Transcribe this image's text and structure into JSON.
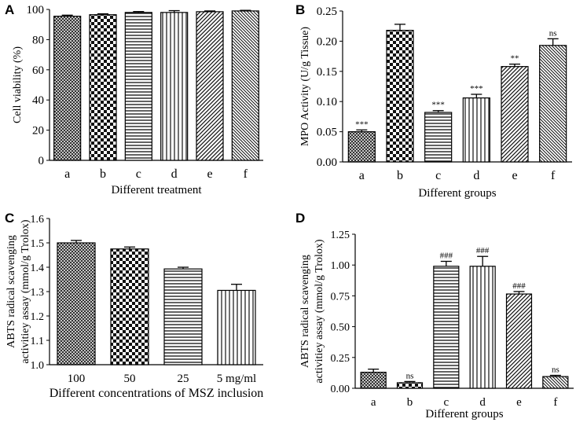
{
  "patterns": {
    "a": "crosshatch",
    "b": "checker",
    "c": "hlines",
    "d": "vlines",
    "e": "diagonal",
    "f": "diagonal-fine"
  },
  "chart_data": [
    {
      "panel": "A",
      "type": "bar",
      "title": "",
      "xlabel": "Different treatment",
      "ylabel": "Cell viability (%)",
      "ylim": [
        0,
        100
      ],
      "yticks": [
        "0",
        "20",
        "40",
        "60",
        "80",
        "100"
      ],
      "categories": [
        "a",
        "b",
        "c",
        "d",
        "e",
        "f"
      ],
      "values": [
        95.5,
        96.5,
        98,
        98,
        98.5,
        99
      ],
      "errors": [
        0.7,
        0.6,
        0.6,
        1.2,
        0.5,
        0.4
      ],
      "annotations": [
        "",
        "",
        "",
        "",
        "",
        ""
      ],
      "grid": false
    },
    {
      "panel": "B",
      "type": "bar",
      "title": "",
      "xlabel": "Different groups",
      "ylabel": "MPO Activity (U/g Tissue)",
      "ylim": [
        0,
        0.25
      ],
      "yticks": [
        "0.00",
        "0.05",
        "0.10",
        "0.15",
        "0.20",
        "0.25"
      ],
      "categories": [
        "a",
        "b",
        "c",
        "d",
        "e",
        "f"
      ],
      "values": [
        0.05,
        0.218,
        0.082,
        0.106,
        0.158,
        0.193
      ],
      "errors": [
        0.003,
        0.01,
        0.003,
        0.006,
        0.004,
        0.011
      ],
      "annotations": [
        "***",
        "",
        "***",
        "***",
        "**",
        "ns"
      ],
      "grid": false
    },
    {
      "panel": "C",
      "type": "bar",
      "title": "",
      "xlabel": "Different concentrations of MSZ inclusion",
      "ylabel": "ABTS radical scavenging activitiey assay (mmol/g Trolox)",
      "ylabel_lines": [
        "ABTS radical scavenging",
        "activitiey assay (mmol/g Trolox)"
      ],
      "ylim": [
        1.0,
        1.6
      ],
      "yticks": [
        "1.0",
        "1.1",
        "1.2",
        "1.3",
        "1.4",
        "1.5",
        "1.6"
      ],
      "categories": [
        "100",
        "50",
        "25",
        "5 mg/ml"
      ],
      "values": [
        1.5,
        1.475,
        1.393,
        1.305
      ],
      "errors": [
        0.01,
        0.008,
        0.007,
        0.025
      ],
      "annotations": [
        "",
        "",
        "",
        ""
      ],
      "grid": false
    },
    {
      "panel": "D",
      "type": "bar",
      "title": "",
      "xlabel": "Different groups",
      "ylabel": "ABTS radical scavenging activitiey assay (mmol/g Trolox)",
      "ylabel_lines": [
        "ABTS radical scavenging",
        "activitiey assay (mmol/g Trolox)"
      ],
      "ylim": [
        0,
        1.25
      ],
      "yticks": [
        "0.00",
        "0.25",
        "0.50",
        "0.75",
        "1.00",
        "1.25"
      ],
      "categories": [
        "a",
        "b",
        "c",
        "d",
        "e",
        "f"
      ],
      "values": [
        0.13,
        0.045,
        0.99,
        0.99,
        0.765,
        0.095
      ],
      "errors": [
        0.025,
        0.01,
        0.04,
        0.08,
        0.02,
        0.01
      ],
      "annotations": [
        "",
        "ns",
        "###",
        "###",
        "###",
        "ns"
      ],
      "grid": false
    }
  ]
}
